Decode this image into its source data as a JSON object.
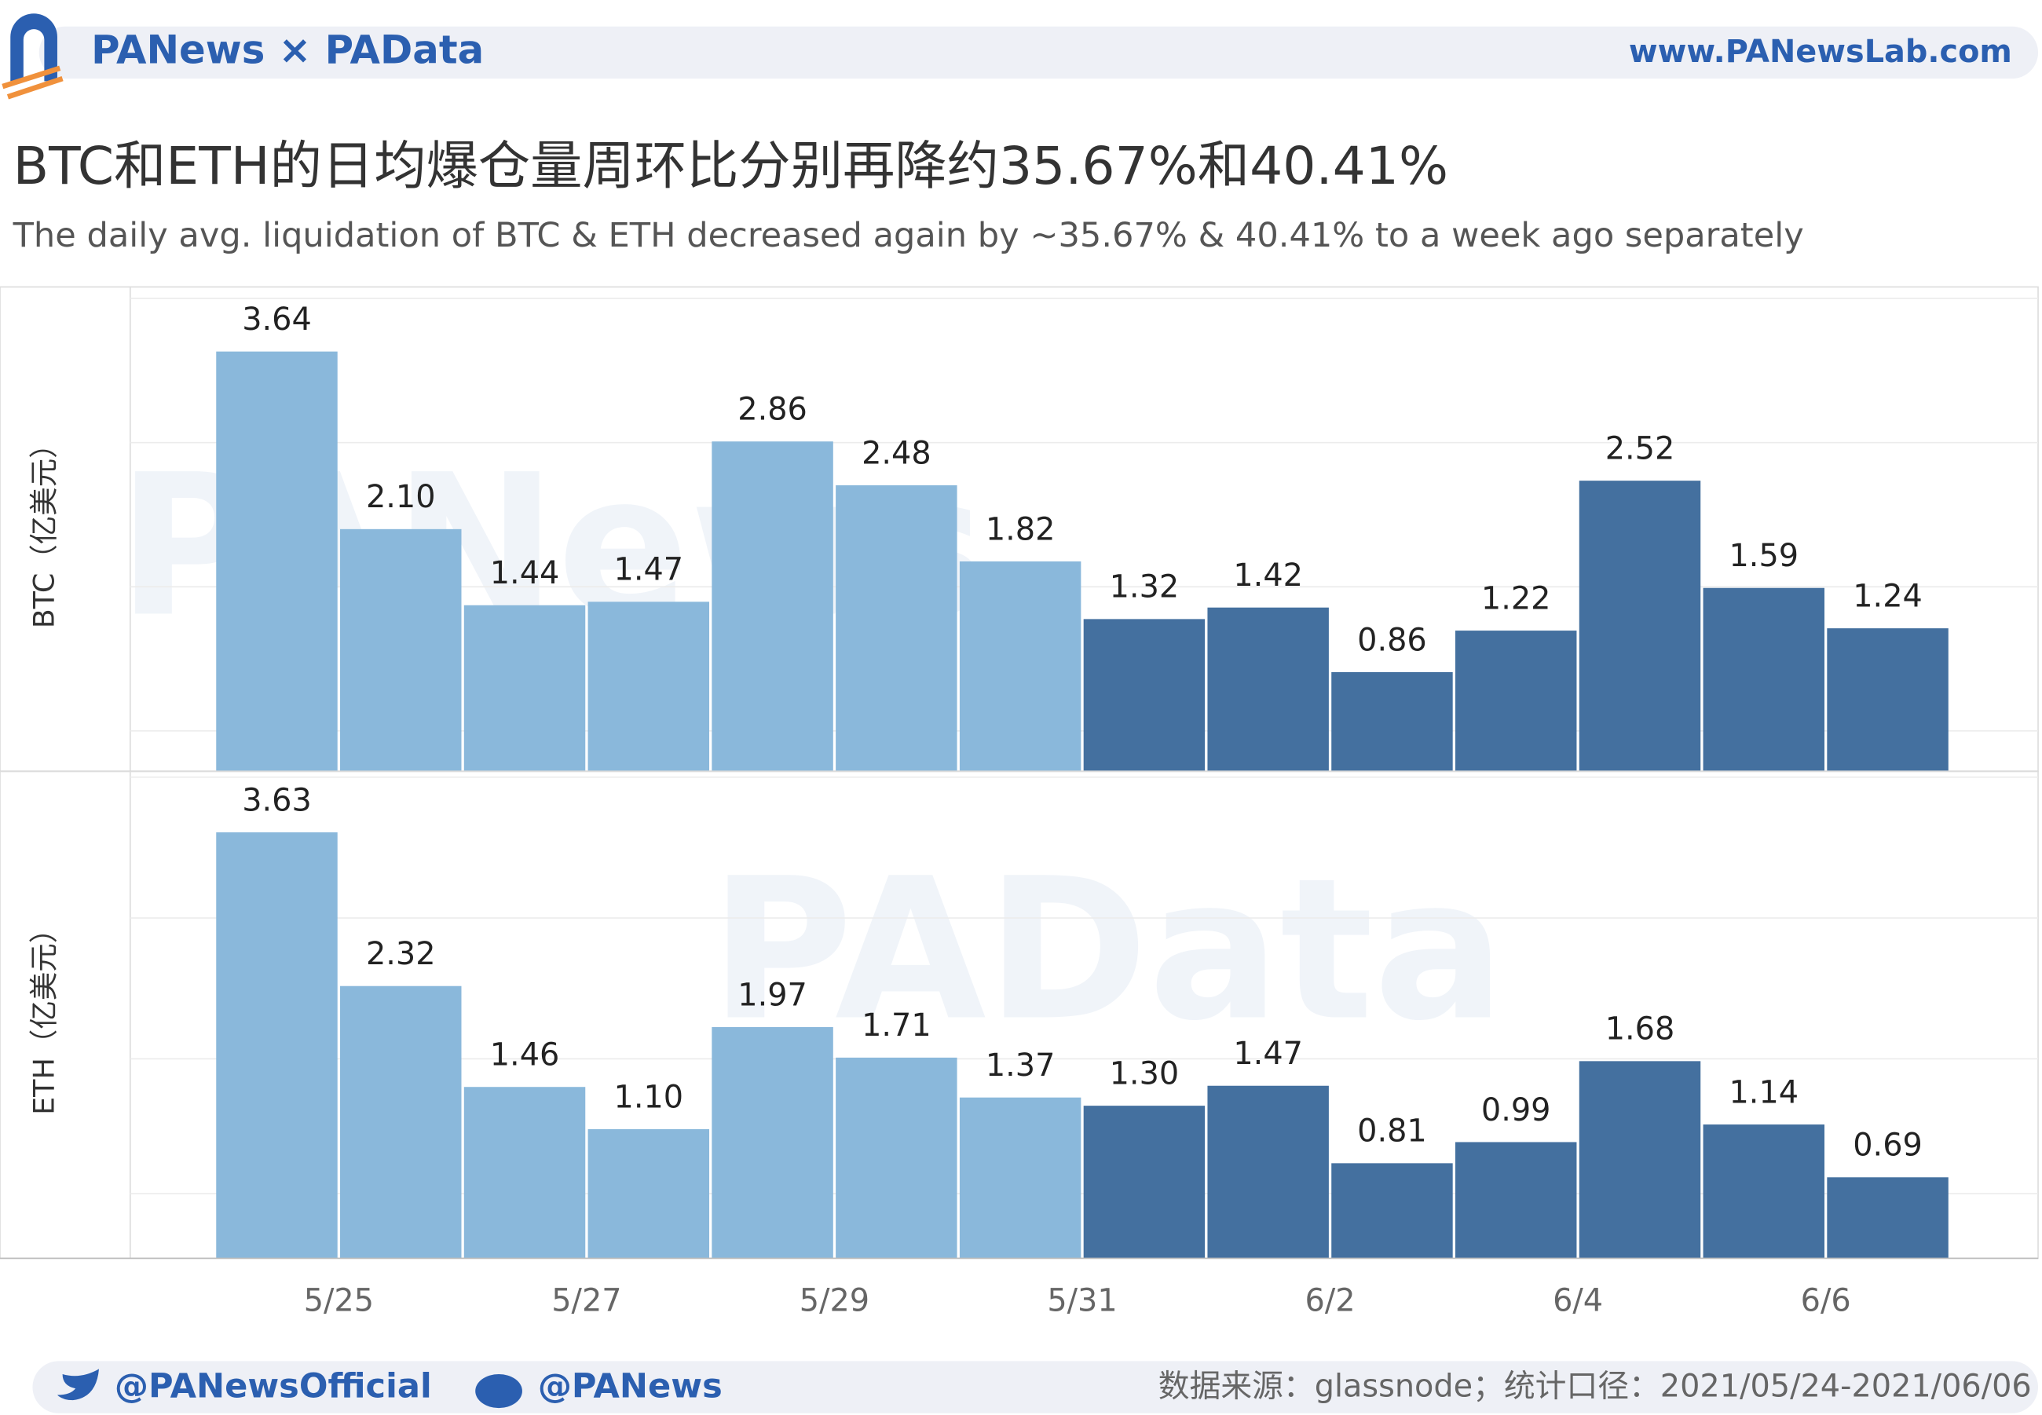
{
  "header": {
    "brand": "PANews × PAData",
    "url": "www.PANewsLab.com",
    "title": "BTC和ETH的日均爆仓量周环比分别再降约35.67%和40.41%",
    "subtitle": "The daily avg. liquidation of BTC & ETH decreased again by ~35.67% & 40.41% to a week ago separately",
    "watermarks": [
      "PANews",
      "PAData"
    ]
  },
  "footer": {
    "twitter": "@PANewsOfficial",
    "weibo": "@PANews",
    "source": "数据来源：glassnode；统计口径：2021/05/24-2021/06/06"
  },
  "chart_data": [
    {
      "type": "bar",
      "ylabel": "BTC（亿美元）",
      "categories": [
        null,
        "5/25",
        null,
        "5/27",
        null,
        "5/29",
        null,
        "5/31",
        null,
        "6/2",
        null,
        "6/4",
        null,
        "6/6"
      ],
      "values": [
        3.64,
        2.1,
        1.44,
        1.47,
        2.86,
        2.48,
        1.82,
        1.32,
        1.42,
        0.86,
        1.22,
        2.52,
        1.59,
        1.24
      ],
      "value_labels": [
        "3.64",
        "2.10",
        "1.44",
        "1.47",
        "2.86",
        "2.48",
        "1.82",
        "1.32",
        "1.42",
        "0.86",
        "1.22",
        "2.52",
        "1.59",
        "1.24"
      ],
      "colors": [
        "#8ab8db",
        "#8ab8db",
        "#8ab8db",
        "#8ab8db",
        "#8ab8db",
        "#8ab8db",
        "#8ab8db",
        "#44709f",
        "#44709f",
        "#44709f",
        "#44709f",
        "#44709f",
        "#44709f",
        "#44709f"
      ],
      "ylim": [
        0,
        4.2
      ],
      "yticks": [
        0.35,
        1.6,
        2.85,
        4.1
      ],
      "grid": true
    },
    {
      "type": "bar",
      "ylabel": "ETH（亿美元）",
      "categories": [
        null,
        "5/25",
        null,
        "5/27",
        null,
        "5/29",
        null,
        "5/31",
        null,
        "6/2",
        null,
        "6/4",
        null,
        "6/6"
      ],
      "values": [
        3.63,
        2.32,
        1.46,
        1.1,
        1.97,
        1.71,
        1.37,
        1.3,
        1.47,
        0.81,
        0.99,
        1.68,
        1.14,
        0.69
      ],
      "value_labels": [
        "3.63",
        "2.32",
        "1.46",
        "1.10",
        "1.97",
        "1.71",
        "1.37",
        "1.30",
        "1.47",
        "0.81",
        "0.99",
        "1.68",
        "1.14",
        "0.69"
      ],
      "colors": [
        "#8ab8db",
        "#8ab8db",
        "#8ab8db",
        "#8ab8db",
        "#8ab8db",
        "#8ab8db",
        "#8ab8db",
        "#44709f",
        "#44709f",
        "#44709f",
        "#44709f",
        "#44709f",
        "#44709f",
        "#44709f"
      ],
      "ylim": [
        0,
        4.15
      ],
      "yticks": [
        0.55,
        1.7,
        2.9,
        4.1
      ],
      "grid": true
    }
  ]
}
